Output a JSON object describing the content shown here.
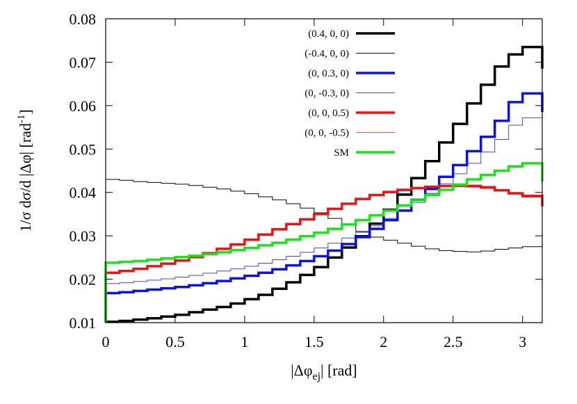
{
  "chart_data": {
    "type": "line",
    "step": true,
    "xlabel": {
      "pre": "|Δφ",
      "sub": "ej",
      "post": "|  [rad]"
    },
    "ylabel": {
      "text": "1/σ dσ/d |Δφ|    [rad",
      "sup": "-1",
      "close": "]"
    },
    "xlim": [
      0,
      3.1416
    ],
    "ylim": [
      0.01,
      0.08
    ],
    "xticks": [
      0,
      0.5,
      1,
      1.5,
      2,
      2.5,
      3
    ],
    "xtick_labels": [
      "0",
      "0.5",
      "1",
      "1.5",
      "2",
      "2.5",
      "3"
    ],
    "yticks": [
      0.01,
      0.02,
      0.03,
      0.04,
      0.05,
      0.06,
      0.07,
      0.08
    ],
    "ytick_labels": [
      "0.01",
      "0.02",
      "0.03",
      "0.04",
      "0.05",
      "0.06",
      "0.07",
      "0.08"
    ],
    "grid": false,
    "legend_position": "top-right",
    "x_edges": [
      0,
      0.1,
      0.2,
      0.3,
      0.4,
      0.5,
      0.6,
      0.7,
      0.8,
      0.9,
      1.0,
      1.1,
      1.2,
      1.3,
      1.4,
      1.5,
      1.6,
      1.7,
      1.8,
      1.9,
      2.0,
      2.1,
      2.2,
      2.3,
      2.4,
      2.5,
      2.6,
      2.7,
      2.8,
      2.9,
      3.0,
      3.1416
    ],
    "series": [
      {
        "name": "(0.4, 0, 0)",
        "color": "#000000",
        "width": 3.5,
        "values": [
          0.0102,
          0.0104,
          0.0107,
          0.011,
          0.0114,
          0.0118,
          0.0124,
          0.013,
          0.0136,
          0.0144,
          0.0154,
          0.0164,
          0.0178,
          0.0193,
          0.021,
          0.0228,
          0.025,
          0.0273,
          0.0299,
          0.0328,
          0.036,
          0.0395,
          0.0433,
          0.0472,
          0.0515,
          0.0558,
          0.0605,
          0.0648,
          0.069,
          0.0718,
          0.0735,
          0.0685
        ]
      },
      {
        "name": "(-0.4, 0, 0)",
        "color": "#000000",
        "width": 1,
        "values": [
          0.043,
          0.0428,
          0.0425,
          0.0423,
          0.0421,
          0.0419,
          0.0416,
          0.0412,
          0.0408,
          0.0403,
          0.0397,
          0.039,
          0.0383,
          0.0374,
          0.0364,
          0.0353,
          0.034,
          0.0326,
          0.031,
          0.0297,
          0.029,
          0.0283,
          0.0276,
          0.027,
          0.0266,
          0.0264,
          0.0263,
          0.0265,
          0.0269,
          0.0272,
          0.0275,
          0.0255
        ]
      },
      {
        "name": "(0, 0.3, 0)",
        "color": "#0a12e6",
        "width": 3.5,
        "values": [
          0.0168,
          0.017,
          0.0173,
          0.0176,
          0.0179,
          0.0182,
          0.0186,
          0.0191,
          0.0196,
          0.0202,
          0.0208,
          0.0215,
          0.0223,
          0.0232,
          0.0242,
          0.0253,
          0.0266,
          0.0281,
          0.0297,
          0.0316,
          0.0336,
          0.0358,
          0.0383,
          0.0408,
          0.0436,
          0.0463,
          0.0495,
          0.0528,
          0.0565,
          0.0608,
          0.0628,
          0.0585
        ]
      },
      {
        "name": "(0, -0.3, 0)",
        "color": "#3b45e6",
        "width": 1,
        "values": [
          0.019,
          0.0192,
          0.0195,
          0.0198,
          0.0201,
          0.0205,
          0.0209,
          0.0214,
          0.0219,
          0.0224,
          0.023,
          0.0237,
          0.0245,
          0.0253,
          0.0262,
          0.0272,
          0.0283,
          0.0295,
          0.0308,
          0.0323,
          0.034,
          0.0358,
          0.0377,
          0.0398,
          0.042,
          0.0443,
          0.0467,
          0.0493,
          0.0522,
          0.0555,
          0.0572,
          0.0528
        ]
      },
      {
        "name": "(0, 0, 0.5)",
        "color": "#ee1111",
        "width": 3.5,
        "values": [
          0.0215,
          0.0219,
          0.0224,
          0.023,
          0.0236,
          0.0243,
          0.0251,
          0.026,
          0.027,
          0.028,
          0.0291,
          0.0303,
          0.0315,
          0.0327,
          0.0338,
          0.035,
          0.0362,
          0.0374,
          0.0385,
          0.0394,
          0.0401,
          0.0406,
          0.041,
          0.0413,
          0.0415,
          0.0416,
          0.0415,
          0.0412,
          0.0405,
          0.0398,
          0.0392,
          0.0368
        ]
      },
      {
        "name": "(0, 0, -0.5)",
        "color": "#ee5555",
        "width": 1,
        "values": [
          0.0217,
          0.022,
          0.0225,
          0.0231,
          0.0237,
          0.0244,
          0.0252,
          0.026,
          0.0269,
          0.0279,
          0.029,
          0.0302,
          0.0314,
          0.0326,
          0.0337,
          0.0349,
          0.0361,
          0.0373,
          0.0384,
          0.0393,
          0.0399,
          0.0404,
          0.0408,
          0.0411,
          0.0413,
          0.0413,
          0.0412,
          0.0409,
          0.0403,
          0.0396,
          0.0389,
          0.0365
        ]
      },
      {
        "name": "SM",
        "color": "#16e616",
        "width": 3.5,
        "values": [
          0.0238,
          0.024,
          0.0242,
          0.0245,
          0.0248,
          0.0251,
          0.0254,
          0.0258,
          0.0262,
          0.0267,
          0.0272,
          0.0278,
          0.0284,
          0.0291,
          0.0299,
          0.0307,
          0.0316,
          0.0326,
          0.0336,
          0.0347,
          0.0358,
          0.037,
          0.0382,
          0.0394,
          0.0406,
          0.0418,
          0.043,
          0.044,
          0.045,
          0.046,
          0.0467,
          0.0425
        ]
      }
    ]
  }
}
